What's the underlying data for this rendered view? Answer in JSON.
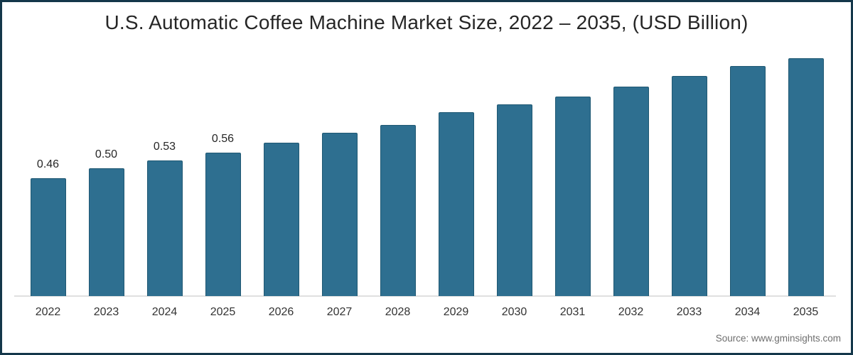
{
  "title": "U.S. Automatic Coffee Machine Market Size, 2022 – 2035, (USD Billion)",
  "source": "Source: www.gminsights.com",
  "colors": {
    "bar_fill": "#2e6f90",
    "bar_edge": "#1f5873",
    "frame_border": "#14374a",
    "axis_line": "#e0e0e0",
    "title_text": "#262626",
    "tick_text": "#333333",
    "data_label_text": "#262626",
    "source_text": "#6e6e6e"
  },
  "chart_data": {
    "type": "bar",
    "title": "U.S. Automatic Coffee Machine Market Size, 2022 – 2035, (USD Billion)",
    "unit": "USD Billion",
    "categories": [
      "2022",
      "2023",
      "2024",
      "2025",
      "2026",
      "2027",
      "2028",
      "2029",
      "2030",
      "2031",
      "2032",
      "2033",
      "2034",
      "2035"
    ],
    "values": [
      0.46,
      0.5,
      0.53,
      0.56,
      0.6,
      0.64,
      0.67,
      0.72,
      0.75,
      0.78,
      0.82,
      0.86,
      0.9,
      0.93
    ],
    "data_labels": [
      "0.46",
      "0.50",
      "0.53",
      "0.56"
    ],
    "xlabel": "",
    "ylabel": "",
    "ylim": [
      0,
      1.0
    ],
    "grid": false,
    "legend": false
  }
}
